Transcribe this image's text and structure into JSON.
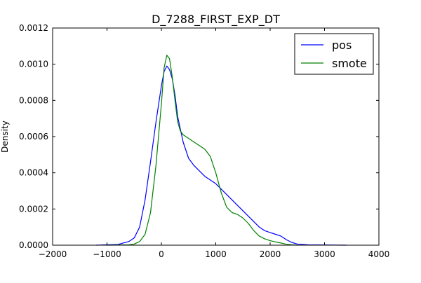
{
  "chart_data": {
    "type": "line",
    "title": "D_7288_FIRST_EXP_DT",
    "xlabel": "",
    "ylabel": "Density",
    "xlim": [
      -2000,
      4000
    ],
    "ylim": [
      0,
      0.0012
    ],
    "xticks": [
      -2000,
      -1000,
      0,
      1000,
      2000,
      3000,
      4000
    ],
    "xtick_labels": [
      "−2000",
      "−1000",
      "0",
      "1000",
      "2000",
      "3000",
      "4000"
    ],
    "yticks": [
      0,
      0.0002,
      0.0004,
      0.0006,
      0.0008,
      0.001,
      0.0012
    ],
    "ytick_labels": [
      "0.0000",
      "0.0002",
      "0.0004",
      "0.0006",
      "0.0008",
      "0.0010",
      "0.0012"
    ],
    "grid": false,
    "legend_position": "top-right",
    "series": [
      {
        "name": "pos",
        "color": "#0000ff",
        "points": [
          [
            -1200,
            0
          ],
          [
            -800,
            4e-06
          ],
          [
            -600,
            2e-05
          ],
          [
            -500,
            4e-05
          ],
          [
            -400,
            0.0001
          ],
          [
            -300,
            0.00025
          ],
          [
            -200,
            0.00046
          ],
          [
            -100,
            0.00068
          ],
          [
            0,
            0.00088
          ],
          [
            50,
            0.00096
          ],
          [
            100,
            0.00099
          ],
          [
            150,
            0.00097
          ],
          [
            200,
            0.00092
          ],
          [
            250,
            0.00083
          ],
          [
            300,
            0.00071
          ],
          [
            400,
            0.00057
          ],
          [
            500,
            0.00048
          ],
          [
            600,
            0.00044
          ],
          [
            700,
            0.00041
          ],
          [
            800,
            0.00038
          ],
          [
            900,
            0.00036
          ],
          [
            1000,
            0.00034
          ],
          [
            1100,
            0.00031
          ],
          [
            1200,
            0.00028
          ],
          [
            1300,
            0.00025
          ],
          [
            1400,
            0.00022
          ],
          [
            1500,
            0.00019
          ],
          [
            1600,
            0.00016
          ],
          [
            1700,
            0.00013
          ],
          [
            1800,
            0.0001
          ],
          [
            1900,
            8e-05
          ],
          [
            2000,
            7e-05
          ],
          [
            2100,
            6e-05
          ],
          [
            2200,
            5e-05
          ],
          [
            2300,
            3e-05
          ],
          [
            2400,
            1.5e-05
          ],
          [
            2500,
            6e-06
          ],
          [
            2700,
            2e-06
          ],
          [
            3000,
            1e-06
          ],
          [
            3400,
            0
          ]
        ]
      },
      {
        "name": "smote",
        "color": "#008000",
        "points": [
          [
            -1000,
            0
          ],
          [
            -600,
            2e-06
          ],
          [
            -500,
            6e-06
          ],
          [
            -400,
            2e-05
          ],
          [
            -300,
            6e-05
          ],
          [
            -200,
            0.00018
          ],
          [
            -100,
            0.00044
          ],
          [
            0,
            0.00078
          ],
          [
            50,
            0.00098
          ],
          [
            100,
            0.00105
          ],
          [
            150,
            0.00103
          ],
          [
            200,
            0.00093
          ],
          [
            250,
            0.0008
          ],
          [
            300,
            0.00068
          ],
          [
            350,
            0.00063
          ],
          [
            400,
            0.00061
          ],
          [
            500,
            0.00059
          ],
          [
            600,
            0.00057
          ],
          [
            700,
            0.00055
          ],
          [
            800,
            0.00053
          ],
          [
            900,
            0.00049
          ],
          [
            1000,
            0.0004
          ],
          [
            1100,
            0.00029
          ],
          [
            1200,
            0.00021
          ],
          [
            1300,
            0.00018
          ],
          [
            1400,
            0.00017
          ],
          [
            1500,
            0.00015
          ],
          [
            1600,
            0.00012
          ],
          [
            1700,
            8e-05
          ],
          [
            1800,
            5e-05
          ],
          [
            1900,
            3.5e-05
          ],
          [
            2000,
            2.5e-05
          ],
          [
            2100,
            1.8e-05
          ],
          [
            2200,
            1.2e-05
          ],
          [
            2300,
            5e-06
          ],
          [
            2400,
            2e-06
          ],
          [
            2500,
            0
          ]
        ]
      }
    ]
  }
}
